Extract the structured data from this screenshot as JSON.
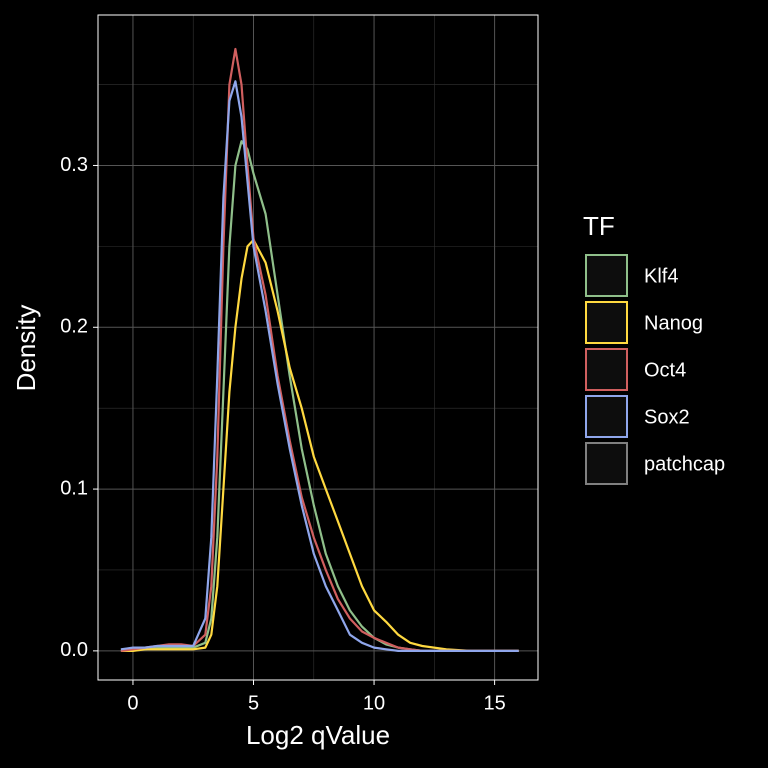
{
  "chart_data": {
    "type": "line",
    "x_label": "Log2 qValue",
    "y_label": "Density",
    "legend_title": "TF",
    "legend_position": "right",
    "x": [
      -0.5,
      0,
      0.5,
      1,
      1.5,
      2,
      2.5,
      3,
      3.25,
      3.5,
      3.75,
      4,
      4.25,
      4.5,
      4.75,
      5,
      5.5,
      6,
      6.5,
      7,
      7.5,
      8,
      8.5,
      9,
      9.5,
      10,
      10.5,
      11,
      11.5,
      12,
      13,
      14,
      15,
      16
    ],
    "series": [
      {
        "name": "Klf4",
        "color": "#8fbf8a",
        "values": [
          0,
          0.001,
          0.001,
          0.002,
          0.002,
          0.002,
          0.002,
          0.005,
          0.02,
          0.07,
          0.16,
          0.25,
          0.3,
          0.315,
          0.31,
          0.295,
          0.27,
          0.22,
          0.17,
          0.125,
          0.09,
          0.06,
          0.04,
          0.025,
          0.015,
          0.008,
          0.004,
          0.002,
          0.001,
          0,
          0,
          0,
          0,
          0
        ]
      },
      {
        "name": "Nanog",
        "color": "#ffd940",
        "values": [
          0,
          0,
          0.001,
          0.001,
          0.001,
          0.001,
          0.001,
          0.002,
          0.01,
          0.04,
          0.1,
          0.16,
          0.2,
          0.23,
          0.25,
          0.254,
          0.24,
          0.21,
          0.175,
          0.15,
          0.12,
          0.1,
          0.08,
          0.06,
          0.04,
          0.025,
          0.018,
          0.01,
          0.005,
          0.003,
          0.001,
          0,
          0,
          0
        ]
      },
      {
        "name": "Oct4",
        "color": "#d05f5f",
        "values": [
          0,
          0.001,
          0.002,
          0.003,
          0.004,
          0.004,
          0.003,
          0.01,
          0.04,
          0.12,
          0.25,
          0.35,
          0.372,
          0.35,
          0.3,
          0.255,
          0.22,
          0.17,
          0.13,
          0.095,
          0.07,
          0.05,
          0.032,
          0.02,
          0.012,
          0.008,
          0.005,
          0.002,
          0.001,
          0,
          0,
          0,
          0,
          0
        ]
      },
      {
        "name": "Sox2",
        "color": "#8fa6eb",
        "values": [
          0.001,
          0.002,
          0.002,
          0.003,
          0.003,
          0.003,
          0.003,
          0.02,
          0.07,
          0.17,
          0.28,
          0.34,
          0.352,
          0.33,
          0.29,
          0.25,
          0.21,
          0.165,
          0.125,
          0.09,
          0.06,
          0.04,
          0.025,
          0.01,
          0.005,
          0.002,
          0.001,
          0,
          0,
          0,
          0,
          0,
          0,
          0
        ]
      },
      {
        "name": "patchcap",
        "color": "#808080",
        "values": [
          null,
          null,
          null,
          null,
          null,
          null,
          null,
          null,
          null,
          null,
          null,
          null,
          null,
          null,
          null,
          null,
          null,
          null,
          null,
          null,
          null,
          null,
          null,
          null,
          null,
          null,
          null,
          null,
          null,
          null,
          null,
          null,
          null,
          null
        ]
      }
    ],
    "xlim": [
      -1.45,
      16.8
    ],
    "ylim": [
      -0.018,
      0.393
    ],
    "xticks": [
      0,
      5,
      10,
      15
    ],
    "yticks": [
      {
        "value": 0,
        "label": "0.0"
      },
      0.1,
      0.2,
      0.3
    ],
    "x_minor_grid": [
      2.5,
      7.5,
      12.5
    ],
    "y_minor_grid": [
      0.05,
      0.15,
      0.25,
      0.35
    ],
    "grid": true
  }
}
